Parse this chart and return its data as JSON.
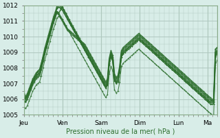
{
  "background_color": "#d8ede8",
  "plot_bg_color": "#d8ede8",
  "grid_color": "#b0c8c0",
  "line_color": "#2d6e2d",
  "xlabel": "Pression niveau de la mer( hPa )",
  "ylim": [
    1005,
    1012
  ],
  "yticks": [
    1005,
    1006,
    1007,
    1008,
    1009,
    1010,
    1011,
    1012
  ],
  "x_day_labels": [
    "Jeu",
    "Ven",
    "Sam",
    "Dim",
    "Lun",
    "Ma"
  ],
  "x_day_positions": [
    0,
    24,
    48,
    72,
    96,
    114
  ],
  "xlim": [
    0,
    120
  ],
  "series": [
    [
      1005.8,
      1005.9,
      1006.1,
      1006.4,
      1006.7,
      1007.0,
      1007.2,
      1007.4,
      1007.5,
      1007.6,
      1008.0,
      1008.5,
      1009.0,
      1009.4,
      1009.8,
      1010.2,
      1010.6,
      1011.0,
      1011.3,
      1011.5,
      1011.4,
      1011.2,
      1011.0,
      1010.8,
      1010.6,
      1010.4,
      1010.3,
      1010.2,
      1010.1,
      1010.0,
      1009.9,
      1009.8,
      1009.7,
      1009.6,
      1009.5,
      1009.4,
      1009.2,
      1009.0,
      1008.8,
      1008.6,
      1008.4,
      1008.2,
      1008.0,
      1007.8,
      1007.6,
      1007.4,
      1007.2,
      1007.0,
      1007.2,
      1008.5,
      1009.0,
      1008.7,
      1007.5,
      1007.3,
      1007.4,
      1008.0,
      1009.0,
      1009.2,
      1009.3,
      1009.4,
      1009.5,
      1009.6,
      1009.7,
      1009.8,
      1009.9,
      1010.0,
      1010.1,
      1010.0,
      1009.9,
      1009.8,
      1009.7,
      1009.6,
      1009.5,
      1009.4,
      1009.3,
      1009.2,
      1009.1,
      1009.0,
      1008.9,
      1008.8,
      1008.7,
      1008.6,
      1008.5,
      1008.4,
      1008.3,
      1008.2,
      1008.1,
      1008.0,
      1007.9,
      1007.8,
      1007.7,
      1007.6,
      1007.5,
      1007.4,
      1007.3,
      1007.2,
      1007.1,
      1007.0,
      1006.9,
      1006.8,
      1006.7,
      1006.6,
      1006.5,
      1006.4,
      1006.3,
      1006.2,
      1006.1,
      1006.0,
      1005.9,
      1005.9,
      1009.0,
      1009.1
    ],
    [
      1006.0,
      1006.1,
      1006.3,
      1006.6,
      1006.9,
      1007.2,
      1007.4,
      1007.6,
      1007.8,
      1007.9,
      1008.3,
      1008.7,
      1009.1,
      1009.5,
      1009.9,
      1010.3,
      1010.7,
      1011.1,
      1011.4,
      1011.6,
      1011.5,
      1011.3,
      1011.1,
      1010.9,
      1010.7,
      1010.5,
      1010.4,
      1010.3,
      1010.2,
      1010.1,
      1010.0,
      1009.9,
      1009.8,
      1009.7,
      1009.6,
      1009.5,
      1009.3,
      1009.1,
      1008.9,
      1008.7,
      1008.5,
      1008.3,
      1008.1,
      1007.9,
      1007.7,
      1007.5,
      1007.3,
      1007.1,
      1007.3,
      1008.6,
      1009.1,
      1008.8,
      1007.6,
      1007.4,
      1007.5,
      1008.1,
      1009.1,
      1009.3,
      1009.4,
      1009.5,
      1009.6,
      1009.7,
      1009.8,
      1009.9,
      1010.0,
      1010.1,
      1010.2,
      1010.1,
      1010.0,
      1009.9,
      1009.8,
      1009.7,
      1009.6,
      1009.5,
      1009.4,
      1009.3,
      1009.2,
      1009.1,
      1009.0,
      1008.9,
      1008.8,
      1008.7,
      1008.6,
      1008.5,
      1008.4,
      1008.3,
      1008.2,
      1008.1,
      1008.0,
      1007.9,
      1007.8,
      1007.7,
      1007.6,
      1007.5,
      1007.4,
      1007.3,
      1007.2,
      1007.1,
      1007.0,
      1006.9,
      1006.8,
      1006.7,
      1006.6,
      1006.5,
      1006.4,
      1006.3,
      1006.2,
      1006.1,
      1006.0,
      1006.0,
      1009.2,
      1009.3
    ],
    [
      1005.9,
      1005.8,
      1006.0,
      1006.3,
      1006.6,
      1006.9,
      1007.1,
      1007.3,
      1007.4,
      1007.5,
      1007.9,
      1008.4,
      1008.9,
      1009.3,
      1009.7,
      1010.1,
      1010.5,
      1010.9,
      1011.2,
      1011.6,
      1011.5,
      1011.7,
      1011.9,
      1011.7,
      1011.5,
      1011.3,
      1011.0,
      1010.8,
      1010.6,
      1010.4,
      1010.2,
      1010.0,
      1009.8,
      1009.6,
      1009.4,
      1009.2,
      1009.0,
      1008.8,
      1008.6,
      1008.4,
      1008.2,
      1008.0,
      1007.8,
      1007.6,
      1007.4,
      1007.2,
      1007.0,
      1006.8,
      1007.0,
      1008.3,
      1008.8,
      1008.5,
      1007.3,
      1007.1,
      1007.2,
      1007.8,
      1008.8,
      1009.0,
      1009.1,
      1009.2,
      1009.3,
      1009.4,
      1009.5,
      1009.6,
      1009.7,
      1009.8,
      1009.9,
      1009.8,
      1009.7,
      1009.6,
      1009.5,
      1009.4,
      1009.3,
      1009.2,
      1009.1,
      1009.0,
      1008.9,
      1008.8,
      1008.7,
      1008.6,
      1008.5,
      1008.4,
      1008.3,
      1008.2,
      1008.1,
      1008.0,
      1007.9,
      1007.8,
      1007.7,
      1007.6,
      1007.5,
      1007.4,
      1007.3,
      1007.2,
      1007.1,
      1007.0,
      1006.9,
      1006.8,
      1006.7,
      1006.6,
      1006.5,
      1006.4,
      1006.3,
      1006.2,
      1006.1,
      1006.0,
      1005.9,
      1005.8,
      1005.8,
      1005.8,
      1008.8,
      1009.0
    ],
    [
      1006.2,
      1006.0,
      1006.2,
      1006.5,
      1006.8,
      1007.1,
      1007.3,
      1007.5,
      1007.6,
      1007.7,
      1008.1,
      1008.6,
      1009.1,
      1009.5,
      1009.9,
      1010.3,
      1010.7,
      1011.1,
      1011.4,
      1011.8,
      1011.9,
      1011.8,
      1011.7,
      1011.5,
      1011.3,
      1011.1,
      1010.9,
      1010.7,
      1010.5,
      1010.3,
      1010.1,
      1009.9,
      1009.7,
      1009.5,
      1009.3,
      1009.1,
      1008.9,
      1008.7,
      1008.5,
      1008.3,
      1008.1,
      1007.9,
      1007.7,
      1007.5,
      1007.3,
      1007.1,
      1006.9,
      1006.7,
      1006.9,
      1008.2,
      1008.7,
      1008.4,
      1007.2,
      1007.0,
      1007.1,
      1007.7,
      1008.7,
      1008.9,
      1009.0,
      1009.1,
      1009.2,
      1009.3,
      1009.4,
      1009.5,
      1009.6,
      1009.7,
      1009.8,
      1009.7,
      1009.6,
      1009.5,
      1009.4,
      1009.3,
      1009.2,
      1009.1,
      1009.0,
      1008.9,
      1008.8,
      1008.7,
      1008.6,
      1008.5,
      1008.4,
      1008.3,
      1008.2,
      1008.1,
      1008.0,
      1007.9,
      1007.8,
      1007.7,
      1007.6,
      1007.5,
      1007.4,
      1007.3,
      1007.2,
      1007.1,
      1007.0,
      1006.9,
      1006.8,
      1006.7,
      1006.6,
      1006.5,
      1006.4,
      1006.3,
      1006.2,
      1006.1,
      1006.0,
      1005.9,
      1005.8,
      1005.7,
      1005.7,
      1005.7,
      1008.6,
      1008.9
    ],
    [
      1006.4,
      1006.2,
      1006.4,
      1006.7,
      1007.0,
      1007.3,
      1007.5,
      1007.7,
      1007.8,
      1007.9,
      1008.3,
      1008.8,
      1009.3,
      1009.7,
      1010.1,
      1010.5,
      1010.9,
      1011.3,
      1011.6,
      1012.0,
      1012.1,
      1012.0,
      1011.9,
      1011.7,
      1011.5,
      1011.3,
      1011.1,
      1010.9,
      1010.7,
      1010.5,
      1010.3,
      1010.1,
      1009.9,
      1009.7,
      1009.5,
      1009.3,
      1009.1,
      1008.9,
      1008.7,
      1008.5,
      1008.3,
      1008.1,
      1007.9,
      1007.7,
      1007.5,
      1007.3,
      1007.1,
      1006.9,
      1007.1,
      1008.4,
      1008.9,
      1008.6,
      1007.4,
      1007.2,
      1007.3,
      1007.9,
      1008.9,
      1009.1,
      1009.2,
      1009.3,
      1009.4,
      1009.5,
      1009.6,
      1009.7,
      1009.8,
      1009.9,
      1010.0,
      1009.9,
      1009.8,
      1009.7,
      1009.6,
      1009.5,
      1009.4,
      1009.3,
      1009.2,
      1009.1,
      1009.0,
      1008.9,
      1008.8,
      1008.7,
      1008.6,
      1008.5,
      1008.4,
      1008.3,
      1008.2,
      1008.1,
      1008.0,
      1007.9,
      1007.8,
      1007.7,
      1007.6,
      1007.5,
      1007.4,
      1007.3,
      1007.2,
      1007.1,
      1007.0,
      1006.9,
      1006.8,
      1006.7,
      1006.6,
      1006.5,
      1006.4,
      1006.3,
      1006.2,
      1006.1,
      1006.0,
      1005.9,
      1005.9,
      1005.9,
      1008.9,
      1009.1
    ],
    [
      1005.5,
      1005.4,
      1005.6,
      1005.9,
      1006.2,
      1006.5,
      1006.7,
      1006.9,
      1007.0,
      1007.1,
      1007.5,
      1008.0,
      1008.5,
      1008.9,
      1009.3,
      1009.7,
      1010.1,
      1010.5,
      1010.8,
      1011.2,
      1011.3,
      1011.2,
      1011.1,
      1010.9,
      1010.7,
      1010.5,
      1010.3,
      1010.1,
      1009.9,
      1009.7,
      1009.5,
      1009.3,
      1009.1,
      1008.9,
      1008.7,
      1008.5,
      1008.3,
      1008.1,
      1007.9,
      1007.7,
      1007.5,
      1007.3,
      1007.1,
      1006.9,
      1006.7,
      1006.5,
      1006.3,
      1006.1,
      1006.3,
      1007.6,
      1008.1,
      1007.8,
      1006.6,
      1006.4,
      1006.5,
      1007.1,
      1008.1,
      1008.3,
      1008.4,
      1008.5,
      1008.6,
      1008.7,
      1008.8,
      1008.9,
      1009.0,
      1009.1,
      1009.2,
      1009.1,
      1009.0,
      1008.9,
      1008.8,
      1008.7,
      1008.6,
      1008.5,
      1008.4,
      1008.3,
      1008.2,
      1008.1,
      1008.0,
      1007.9,
      1007.8,
      1007.7,
      1007.6,
      1007.5,
      1007.4,
      1007.3,
      1007.2,
      1007.1,
      1007.0,
      1006.9,
      1006.8,
      1006.7,
      1006.6,
      1006.5,
      1006.4,
      1006.3,
      1006.2,
      1006.1,
      1006.0,
      1005.9,
      1005.8,
      1005.7,
      1005.6,
      1005.5,
      1005.4,
      1005.3,
      1005.2,
      1005.1,
      1005.0,
      1005.0,
      1008.2,
      1008.5
    ],
    [
      1006.1,
      1006.0,
      1006.2,
      1006.5,
      1006.8,
      1007.1,
      1007.3,
      1007.5,
      1007.6,
      1007.7,
      1008.1,
      1008.6,
      1009.1,
      1009.5,
      1009.9,
      1010.3,
      1010.7,
      1011.1,
      1011.4,
      1011.8,
      1011.9,
      1011.8,
      1011.7,
      1011.5,
      1011.3,
      1011.1,
      1010.9,
      1010.7,
      1010.5,
      1010.3,
      1010.1,
      1009.9,
      1009.7,
      1009.5,
      1009.3,
      1009.1,
      1008.9,
      1008.7,
      1008.5,
      1008.3,
      1008.1,
      1007.9,
      1007.7,
      1007.5,
      1007.3,
      1007.1,
      1006.9,
      1006.7,
      1006.9,
      1008.2,
      1008.7,
      1008.4,
      1007.2,
      1007.0,
      1007.1,
      1007.7,
      1008.7,
      1008.9,
      1009.0,
      1009.1,
      1009.2,
      1009.3,
      1009.4,
      1009.5,
      1009.6,
      1009.7,
      1009.8,
      1009.7,
      1009.6,
      1009.5,
      1009.4,
      1009.3,
      1009.2,
      1009.1,
      1009.0,
      1008.9,
      1008.8,
      1008.7,
      1008.6,
      1008.5,
      1008.4,
      1008.3,
      1008.2,
      1008.1,
      1008.0,
      1007.9,
      1007.8,
      1007.7,
      1007.6,
      1007.5,
      1007.4,
      1007.3,
      1007.2,
      1007.1,
      1007.0,
      1006.9,
      1006.8,
      1006.7,
      1006.6,
      1006.5,
      1006.4,
      1006.3,
      1006.2,
      1006.1,
      1006.0,
      1005.9,
      1005.8,
      1005.7,
      1005.7,
      1005.7,
      1009.0,
      1009.3
    ],
    [
      1006.3,
      1006.1,
      1006.3,
      1006.6,
      1006.9,
      1007.2,
      1007.4,
      1007.6,
      1007.7,
      1007.8,
      1008.2,
      1008.7,
      1009.2,
      1009.6,
      1010.0,
      1010.4,
      1010.8,
      1011.2,
      1011.5,
      1011.9,
      1012.0,
      1011.9,
      1011.8,
      1011.6,
      1011.4,
      1011.2,
      1011.0,
      1010.8,
      1010.6,
      1010.4,
      1010.2,
      1010.0,
      1009.8,
      1009.6,
      1009.4,
      1009.2,
      1009.0,
      1008.8,
      1008.6,
      1008.4,
      1008.2,
      1008.0,
      1007.8,
      1007.6,
      1007.4,
      1007.2,
      1007.0,
      1006.8,
      1007.0,
      1008.3,
      1008.8,
      1008.5,
      1007.3,
      1007.1,
      1007.2,
      1007.8,
      1008.8,
      1009.0,
      1009.1,
      1009.2,
      1009.3,
      1009.4,
      1009.5,
      1009.6,
      1009.7,
      1009.8,
      1009.9,
      1009.8,
      1009.7,
      1009.6,
      1009.5,
      1009.4,
      1009.3,
      1009.2,
      1009.1,
      1009.0,
      1008.9,
      1008.8,
      1008.7,
      1008.6,
      1008.5,
      1008.4,
      1008.3,
      1008.2,
      1008.1,
      1008.0,
      1007.9,
      1007.8,
      1007.7,
      1007.6,
      1007.5,
      1007.4,
      1007.3,
      1007.2,
      1007.1,
      1007.0,
      1006.9,
      1006.8,
      1006.7,
      1006.6,
      1006.5,
      1006.4,
      1006.3,
      1006.2,
      1006.1,
      1006.0,
      1005.9,
      1005.8,
      1005.8,
      1005.8,
      1008.7,
      1009.0
    ]
  ]
}
